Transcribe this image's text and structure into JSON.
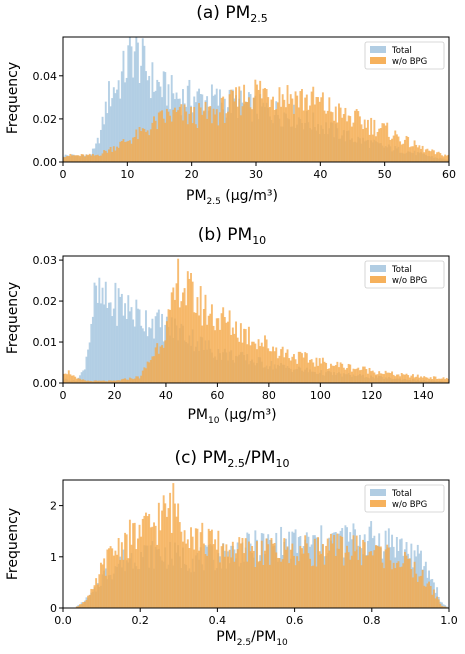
{
  "colors": {
    "total": "#a8c8e0",
    "wobpg": "#f5a94a",
    "axis": "#000000"
  },
  "chart_data": [
    {
      "id": "a",
      "type": "histogram",
      "title": {
        "prefix": "(a) PM",
        "sub": "2.5",
        "suffix": ""
      },
      "xlabel": {
        "main": "PM",
        "sub": "2.5",
        "rest": " (μg/m³)"
      },
      "ylabel": "Frequency",
      "xlim": [
        0,
        60
      ],
      "ylim": [
        0,
        0.058
      ],
      "xticks": [
        0,
        10,
        20,
        30,
        40,
        50,
        60
      ],
      "xticklabels": [
        "0",
        "10",
        "20",
        "30",
        "40",
        "50",
        "60"
      ],
      "yticks": [
        0,
        0.02,
        0.04
      ],
      "yticklabels": [
        "0.00",
        "0.02",
        "0.04"
      ],
      "bins": {
        "start": 0,
        "end": 60,
        "count": 240
      },
      "legend": {
        "position": "top-right",
        "items": [
          "Total",
          "w/o BPG"
        ]
      },
      "series": [
        {
          "name": "Total",
          "color": "total",
          "x": [
            0,
            4,
            5,
            6,
            7,
            9,
            10,
            11,
            12,
            13,
            14,
            16,
            18,
            20,
            23,
            25,
            27,
            30,
            35,
            40,
            45,
            50,
            55,
            58,
            60
          ],
          "y": [
            0.003,
            0.003,
            0.006,
            0.015,
            0.03,
            0.038,
            0.046,
            0.052,
            0.047,
            0.042,
            0.037,
            0.033,
            0.03,
            0.03,
            0.029,
            0.028,
            0.027,
            0.025,
            0.022,
            0.017,
            0.011,
            0.007,
            0.004,
            0.002,
            0.001
          ]
        },
        {
          "name": "w/o BPG",
          "color": "wobpg",
          "x": [
            0,
            5,
            6,
            8,
            10,
            12,
            14,
            16,
            18,
            20,
            22,
            24,
            26,
            28,
            30,
            33,
            36,
            38,
            40,
            43,
            46,
            50,
            53,
            56,
            58,
            60
          ],
          "y": [
            0.003,
            0.003,
            0.004,
            0.007,
            0.01,
            0.013,
            0.017,
            0.021,
            0.022,
            0.021,
            0.022,
            0.023,
            0.026,
            0.03,
            0.033,
            0.032,
            0.03,
            0.029,
            0.027,
            0.022,
            0.019,
            0.015,
            0.01,
            0.006,
            0.004,
            0.003
          ]
        }
      ]
    },
    {
      "id": "b",
      "type": "histogram",
      "title": {
        "prefix": "(b) PM",
        "sub": "10",
        "suffix": ""
      },
      "xlabel": {
        "main": "PM",
        "sub": "10",
        "rest": " (μg/m³)"
      },
      "ylabel": "Frequency",
      "xlim": [
        0,
        150
      ],
      "ylim": [
        0,
        0.031
      ],
      "xticks": [
        0,
        20,
        40,
        60,
        80,
        100,
        120,
        140
      ],
      "xticklabels": [
        "0",
        "20",
        "40",
        "60",
        "80",
        "100",
        "120",
        "140"
      ],
      "yticks": [
        0,
        0.01,
        0.02,
        0.03
      ],
      "yticklabels": [
        "0.00",
        "0.01",
        "0.02",
        "0.03"
      ],
      "bins": {
        "start": 0,
        "end": 150,
        "count": 240
      },
      "legend": {
        "position": "top-right",
        "items": [
          "Total",
          "w/o BPG"
        ]
      },
      "series": [
        {
          "name": "Total",
          "color": "total",
          "x": [
            0,
            5,
            8,
            10,
            12,
            14,
            18,
            22,
            26,
            30,
            35,
            40,
            45,
            50,
            55,
            60,
            70,
            80,
            90,
            100,
            110,
            120,
            130,
            140,
            150
          ],
          "y": [
            0.001,
            0.0005,
            0.003,
            0.01,
            0.02,
            0.0205,
            0.019,
            0.0195,
            0.018,
            0.016,
            0.015,
            0.0135,
            0.013,
            0.011,
            0.009,
            0.0075,
            0.006,
            0.0045,
            0.0035,
            0.0025,
            0.002,
            0.0015,
            0.001,
            0.0006,
            0.0003
          ]
        },
        {
          "name": "w/o BPG",
          "color": "wobpg",
          "x": [
            0,
            3,
            5,
            10,
            20,
            30,
            35,
            40,
            43,
            45,
            47,
            50,
            55,
            60,
            70,
            80,
            90,
            100,
            110,
            120,
            130,
            140,
            150
          ],
          "y": [
            0.003,
            0.0025,
            0.001,
            0.0005,
            0.0005,
            0.0015,
            0.007,
            0.013,
            0.019,
            0.026,
            0.023,
            0.021,
            0.018,
            0.016,
            0.0125,
            0.009,
            0.0065,
            0.005,
            0.004,
            0.003,
            0.002,
            0.0015,
            0.001
          ]
        }
      ]
    },
    {
      "id": "c",
      "type": "histogram",
      "title": {
        "prefix": "(c) PM",
        "sub": "2.5",
        "suffix": "/PM",
        "sub2": "10"
      },
      "xlabel": {
        "main": "PM",
        "sub": "2.5",
        "rest": "/PM",
        "sub2": "10"
      },
      "ylabel": "Frequency",
      "xlim": [
        0,
        1
      ],
      "ylim": [
        0,
        2.5
      ],
      "xticks": [
        0,
        0.2,
        0.4,
        0.6,
        0.8,
        1.0
      ],
      "xticklabels": [
        "0.0",
        "0.2",
        "0.4",
        "0.6",
        "0.8",
        "1.0"
      ],
      "yticks": [
        0,
        1,
        2
      ],
      "yticklabels": [
        "0",
        "1",
        "2"
      ],
      "bins": {
        "start": 0,
        "end": 1,
        "count": 240
      },
      "legend": {
        "position": "top-right",
        "items": [
          "Total",
          "w/o BPG"
        ]
      },
      "series": [
        {
          "name": "Total",
          "color": "total",
          "x": [
            0.03,
            0.05,
            0.08,
            0.1,
            0.15,
            0.2,
            0.25,
            0.3,
            0.35,
            0.4,
            0.45,
            0.5,
            0.55,
            0.6,
            0.65,
            0.7,
            0.75,
            0.8,
            0.85,
            0.9,
            0.93,
            0.96,
            0.98,
            1.0
          ],
          "y": [
            0.0,
            0.1,
            0.3,
            0.6,
            0.9,
            1.05,
            1.05,
            1.0,
            0.95,
            1.0,
            1.1,
            1.2,
            1.25,
            1.25,
            1.25,
            1.3,
            1.35,
            1.35,
            1.3,
            1.1,
            0.9,
            0.5,
            0.1,
            0.0
          ]
        },
        {
          "name": "w/o BPG",
          "color": "wobpg",
          "x": [
            0.03,
            0.05,
            0.08,
            0.1,
            0.13,
            0.16,
            0.2,
            0.23,
            0.26,
            0.29,
            0.31,
            0.34,
            0.37,
            0.4,
            0.45,
            0.5,
            0.55,
            0.6,
            0.65,
            0.7,
            0.75,
            0.8,
            0.85,
            0.9,
            0.93,
            0.96,
            0.98,
            1.0
          ],
          "y": [
            0.0,
            0.1,
            0.35,
            0.75,
            1.1,
            1.3,
            1.45,
            1.6,
            1.8,
            2.0,
            1.75,
            1.45,
            1.3,
            1.2,
            1.12,
            1.1,
            1.08,
            1.1,
            1.12,
            1.15,
            1.15,
            1.1,
            1.0,
            0.8,
            0.6,
            0.3,
            0.05,
            0.0
          ]
        }
      ]
    }
  ]
}
